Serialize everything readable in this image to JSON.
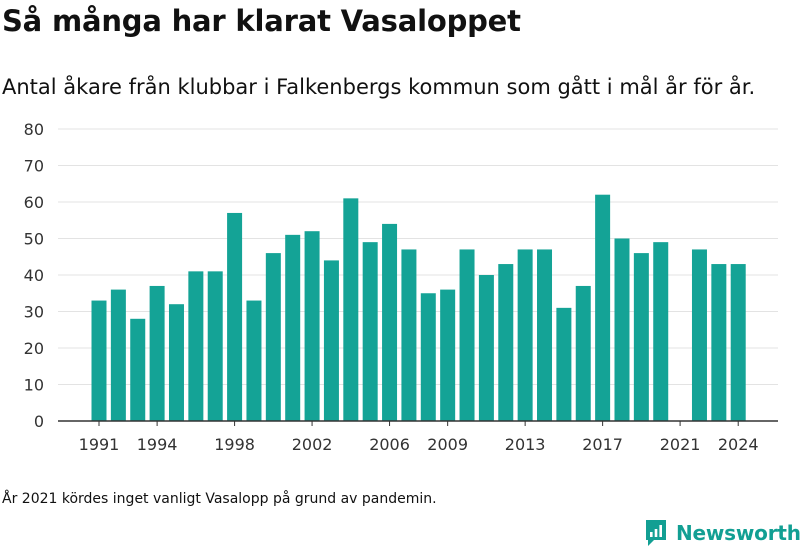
{
  "title": "Så många har klarat Vasaloppet",
  "subtitle": "Antal åkare från klubbar i Falkenbergs kommun som gått i mål år för år.",
  "footnote": "År 2021 kördes inget vanligt Vasalopp på grund av pandemin.",
  "brand": {
    "name": "Newsworthy"
  },
  "colors": {
    "bar": "#14a396",
    "grid": "#e3e3e3",
    "axis": "#333333",
    "brand": "#129f93"
  },
  "chart_data": {
    "type": "bar",
    "title": "Så många har klarat Vasaloppet",
    "subtitle": "Antal åkare från klubbar i Falkenbergs kommun som gått i mål år för år.",
    "xlabel": "",
    "ylabel": "",
    "ylim": [
      0,
      80
    ],
    "y_ticks": [
      0,
      10,
      20,
      30,
      40,
      50,
      60,
      70,
      80
    ],
    "x_tick_labels": [
      1991,
      1994,
      1998,
      2002,
      2006,
      2009,
      2013,
      2017,
      2021,
      2024
    ],
    "grid": true,
    "legend": "none",
    "categories": [
      1991,
      1992,
      1993,
      1994,
      1995,
      1996,
      1997,
      1998,
      1999,
      2000,
      2001,
      2002,
      2003,
      2004,
      2005,
      2006,
      2007,
      2008,
      2009,
      2010,
      2011,
      2012,
      2013,
      2014,
      2015,
      2016,
      2017,
      2018,
      2019,
      2020,
      2021,
      2022,
      2023,
      2024
    ],
    "values": [
      33,
      36,
      28,
      37,
      32,
      41,
      41,
      57,
      33,
      46,
      51,
      52,
      44,
      61,
      49,
      54,
      47,
      35,
      36,
      47,
      40,
      43,
      47,
      47,
      31,
      37,
      62,
      50,
      46,
      49,
      null,
      47,
      43,
      43
    ]
  }
}
